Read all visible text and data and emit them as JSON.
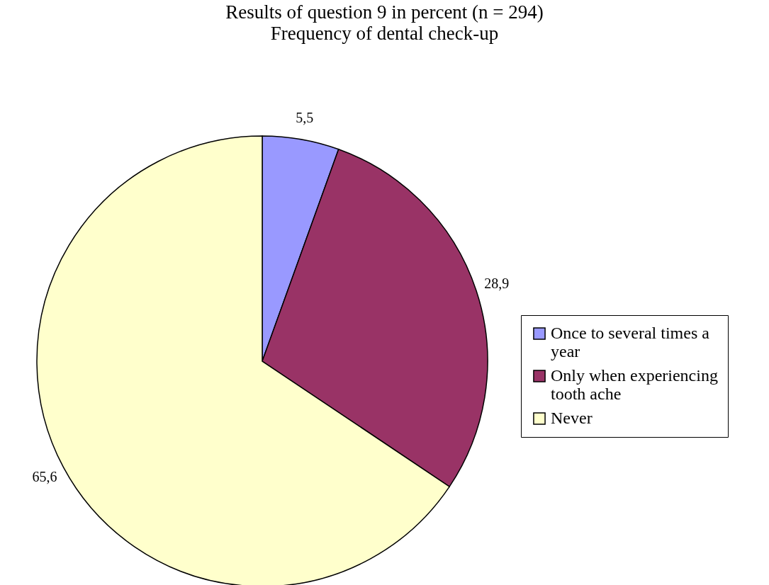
{
  "chart_data": {
    "type": "pie",
    "title": "Results of question 9 in percent (n = 294)",
    "subtitle": "Frequency of dental check-up",
    "categories": [
      "Once to several times a year",
      "Only when experiencing tooth ache",
      "Never"
    ],
    "values": [
      5.5,
      28.9,
      65.6
    ],
    "colors": [
      "#9999ff",
      "#993366",
      "#ffffcc"
    ],
    "value_labels": [
      "5,5",
      "28,9",
      "65,6"
    ],
    "legend": "right"
  }
}
